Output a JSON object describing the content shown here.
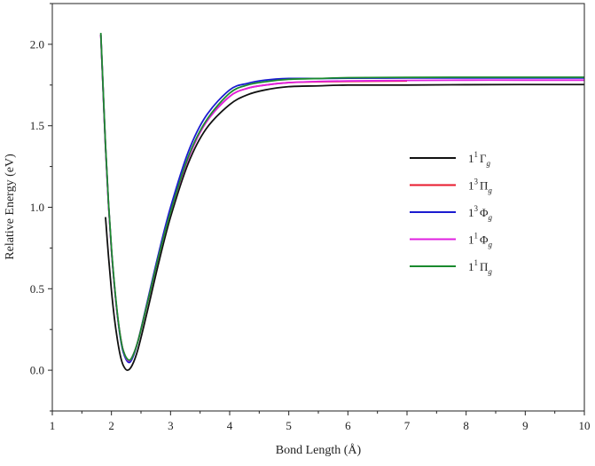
{
  "chart_data": {
    "type": "line",
    "title": "",
    "xlabel": "Bond Length (Å)",
    "ylabel": "Relative Energy (eV)",
    "xlim": [
      1,
      10
    ],
    "ylim": [
      -0.25,
      2.25
    ],
    "xticks": [
      1,
      2,
      3,
      4,
      5,
      6,
      7,
      8,
      9,
      10
    ],
    "xtick_labels": [
      "1",
      "2",
      "3",
      "4",
      "5",
      "6",
      "7",
      "8",
      "9",
      "10"
    ],
    "yticks": [
      0.0,
      0.5,
      1.0,
      1.5,
      2.0
    ],
    "ytick_labels": [
      "0.0",
      "0.5",
      "1.0",
      "1.5",
      "2.0"
    ],
    "grid": false,
    "legend_position": "right-middle",
    "series": [
      {
        "name": "1¹Γg",
        "label_parts": {
          "base": "1",
          "sup": "1",
          "sym": "Γ",
          "sub": "g"
        },
        "color": "#111111",
        "x": [
          1.9,
          1.95,
          2.0,
          2.05,
          2.1,
          2.15,
          2.2,
          2.27,
          2.35,
          2.45,
          2.6,
          2.8,
          3.0,
          3.3,
          3.6,
          4.0,
          4.3,
          4.6,
          5.0,
          5.5,
          6.0,
          7.0,
          8.0,
          9.0,
          10.0
        ],
        "y": [
          0.94,
          0.7,
          0.49,
          0.32,
          0.19,
          0.09,
          0.03,
          0.0,
          0.03,
          0.13,
          0.35,
          0.66,
          0.94,
          1.27,
          1.48,
          1.63,
          1.69,
          1.72,
          1.74,
          1.745,
          1.75,
          1.75,
          1.752,
          1.753,
          1.753
        ]
      },
      {
        "name": "1³Πg",
        "label_parts": {
          "base": "1",
          "sup": "3",
          "sym": "Π",
          "sub": "g"
        },
        "color": "#e8192c",
        "x": [
          1.82,
          1.85,
          1.9,
          1.95,
          2.0,
          2.05,
          2.1,
          2.15,
          2.2,
          2.28,
          2.35,
          2.45,
          2.6,
          2.8,
          3.0,
          3.3,
          3.6,
          4.0,
          4.3,
          4.6,
          5.0,
          5.5,
          6.0,
          7.0
        ],
        "y": [
          2.06,
          1.8,
          1.37,
          1.02,
          0.74,
          0.52,
          0.34,
          0.21,
          0.12,
          0.06,
          0.08,
          0.18,
          0.4,
          0.7,
          0.97,
          1.3,
          1.52,
          1.68,
          1.73,
          1.75,
          1.765,
          1.77,
          1.772,
          1.775
        ]
      },
      {
        "name": "1³Φg",
        "label_parts": {
          "base": "1",
          "sup": "3",
          "sym": "Φ",
          "sub": "g"
        },
        "color": "#1b1bd0",
        "x": [
          1.82,
          1.85,
          1.9,
          1.95,
          2.0,
          2.05,
          2.1,
          2.15,
          2.2,
          2.28,
          2.35,
          2.45,
          2.6,
          2.8,
          3.0,
          3.3,
          3.6,
          4.0,
          4.3,
          4.6,
          5.0,
          5.5,
          6.0,
          7.0,
          8.0,
          9.0,
          10.0
        ],
        "y": [
          2.06,
          1.8,
          1.37,
          1.02,
          0.74,
          0.52,
          0.34,
          0.2,
          0.11,
          0.05,
          0.07,
          0.18,
          0.41,
          0.72,
          1.0,
          1.34,
          1.56,
          1.72,
          1.76,
          1.78,
          1.79,
          1.79,
          1.792,
          1.793,
          1.793,
          1.793,
          1.793
        ]
      },
      {
        "name": "1¹Φg",
        "label_parts": {
          "base": "1",
          "sup": "1",
          "sym": "Φ",
          "sub": "g"
        },
        "color": "#e020e0",
        "x": [
          1.82,
          1.85,
          1.9,
          1.95,
          2.0,
          2.05,
          2.1,
          2.15,
          2.2,
          2.28,
          2.35,
          2.45,
          2.6,
          2.8,
          3.0,
          3.3,
          3.6,
          4.0,
          4.3,
          4.6,
          5.0,
          5.5,
          6.0,
          7.0,
          8.0,
          9.0,
          10.0
        ],
        "y": [
          2.06,
          1.8,
          1.37,
          1.02,
          0.74,
          0.52,
          0.34,
          0.21,
          0.12,
          0.06,
          0.08,
          0.18,
          0.4,
          0.7,
          0.97,
          1.3,
          1.52,
          1.68,
          1.73,
          1.75,
          1.765,
          1.772,
          1.775,
          1.778,
          1.78,
          1.78,
          1.78
        ]
      },
      {
        "name": "1¹Πg",
        "label_parts": {
          "base": "1",
          "sup": "1",
          "sym": "Π",
          "sub": "g"
        },
        "color": "#1a8a2e",
        "x": [
          1.82,
          1.85,
          1.9,
          1.95,
          2.0,
          2.05,
          2.1,
          2.15,
          2.2,
          2.28,
          2.35,
          2.45,
          2.6,
          2.8,
          3.0,
          3.3,
          3.6,
          4.0,
          4.3,
          4.6,
          5.0,
          5.5,
          6.0,
          7.0,
          8.0,
          9.0,
          10.0
        ],
        "y": [
          2.07,
          1.81,
          1.38,
          1.03,
          0.75,
          0.53,
          0.35,
          0.21,
          0.12,
          0.065,
          0.08,
          0.18,
          0.4,
          0.7,
          0.97,
          1.31,
          1.53,
          1.7,
          1.75,
          1.77,
          1.785,
          1.79,
          1.795,
          1.797,
          1.798,
          1.798,
          1.798
        ]
      }
    ]
  }
}
